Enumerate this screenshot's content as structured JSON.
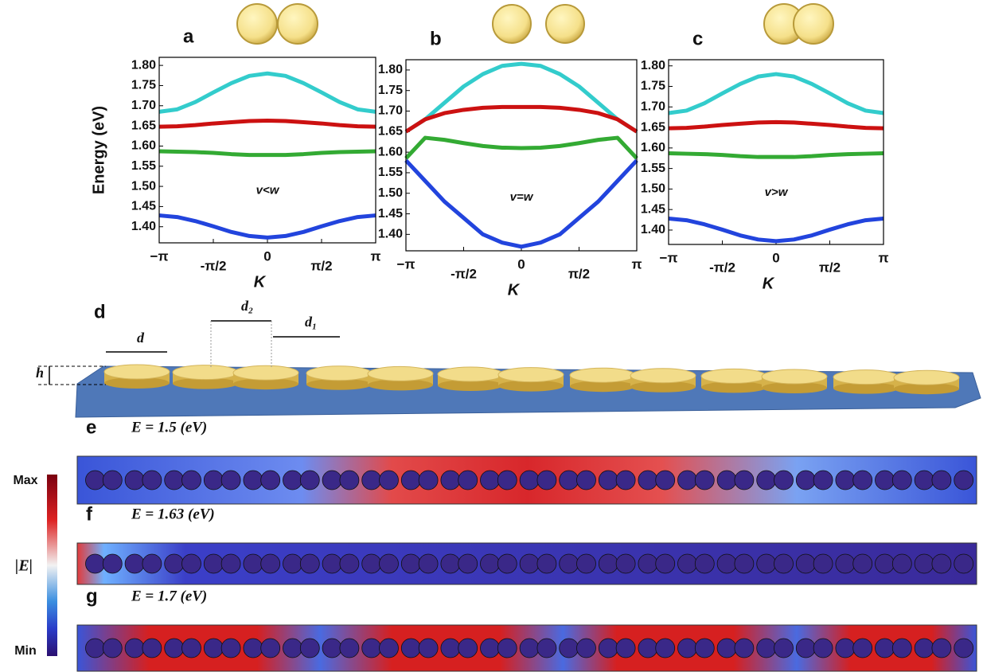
{
  "chart_data": [
    {
      "type": "line",
      "panel": "a",
      "annotation": "v<w",
      "y_label": "Energy (eV)",
      "x_label": "K",
      "x": [
        -3.14159,
        -2.61799,
        -2.0944,
        -1.5708,
        -1.0472,
        -0.5236,
        0,
        0.5236,
        1.0472,
        1.5708,
        2.0944,
        2.61799,
        3.14159
      ],
      "series": [
        {
          "color": "#33cccc",
          "values": [
            1.685,
            1.691,
            1.709,
            1.733,
            1.756,
            1.774,
            1.78,
            1.774,
            1.756,
            1.733,
            1.709,
            1.691,
            1.685
          ]
        },
        {
          "color": "#cc1111",
          "values": [
            1.648,
            1.649,
            1.652,
            1.656,
            1.659,
            1.662,
            1.663,
            1.662,
            1.659,
            1.656,
            1.652,
            1.649,
            1.648
          ]
        },
        {
          "color": "#33aa33",
          "values": [
            1.587,
            1.586,
            1.585,
            1.583,
            1.58,
            1.578,
            1.578,
            1.578,
            1.58,
            1.583,
            1.585,
            1.586,
            1.587
          ]
        },
        {
          "color": "#2244dd",
          "values": [
            1.428,
            1.424,
            1.414,
            1.401,
            1.387,
            1.377,
            1.373,
            1.377,
            1.387,
            1.401,
            1.414,
            1.424,
            1.428
          ]
        }
      ],
      "xlim": [
        -3.14159,
        3.14159
      ],
      "xticks": [
        {
          "value": -3.14159,
          "label": "−π"
        },
        {
          "value": -1.5708,
          "label": "-π/2"
        },
        0,
        {
          "value": 1.5708,
          "label": "π/2"
        },
        {
          "value": 3.14159,
          "label": "π"
        }
      ],
      "ylim": [
        1.36,
        1.82
      ],
      "yticks": [
        {
          "value": 1.4,
          "label": "1.40"
        },
        1.45,
        {
          "value": 1.5,
          "label": "1.50"
        },
        1.55,
        {
          "value": 1.6,
          "label": "1.60"
        },
        1.65,
        {
          "value": 1.7,
          "label": "1.70"
        },
        1.75,
        {
          "value": 1.8,
          "label": "1.80"
        }
      ]
    },
    {
      "type": "line",
      "panel": "b",
      "annotation": "v=w",
      "x_label": "K",
      "x": [
        -3.14159,
        -2.61799,
        -2.0944,
        -1.5708,
        -1.0472,
        -0.5236,
        0,
        0.5236,
        1.0472,
        1.5708,
        2.0944,
        2.61799,
        3.14159
      ],
      "series": [
        {
          "color": "#33cccc",
          "values": [
            1.65,
            1.68,
            1.72,
            1.76,
            1.79,
            1.81,
            1.815,
            1.81,
            1.79,
            1.76,
            1.72,
            1.68,
            1.65
          ]
        },
        {
          "color": "#cc1111",
          "values": [
            1.65,
            1.68,
            1.695,
            1.703,
            1.708,
            1.71,
            1.71,
            1.71,
            1.708,
            1.703,
            1.695,
            1.68,
            1.65
          ]
        },
        {
          "color": "#33aa33",
          "values": [
            1.585,
            1.635,
            1.63,
            1.622,
            1.615,
            1.611,
            1.61,
            1.611,
            1.615,
            1.622,
            1.63,
            1.635,
            1.585
          ]
        },
        {
          "color": "#2244dd",
          "values": [
            1.58,
            1.53,
            1.48,
            1.44,
            1.4,
            1.38,
            1.37,
            1.38,
            1.4,
            1.44,
            1.48,
            1.53,
            1.58
          ]
        }
      ],
      "xlim": [
        -3.14159,
        3.14159
      ],
      "xticks": [
        {
          "value": -3.14159,
          "label": "−π"
        },
        {
          "value": -1.5708,
          "label": "-π/2"
        },
        0,
        {
          "value": 1.5708,
          "label": "π/2"
        },
        {
          "value": 3.14159,
          "label": "π"
        }
      ],
      "ylim": [
        1.36,
        1.825
      ],
      "yticks": [
        {
          "value": 1.4,
          "label": "1.40"
        },
        1.45,
        {
          "value": 1.5,
          "label": "1.50"
        },
        1.55,
        {
          "value": 1.6,
          "label": "1.60"
        },
        1.65,
        {
          "value": 1.7,
          "label": "1.70"
        },
        1.75,
        {
          "value": 1.8,
          "label": "1.80"
        }
      ]
    },
    {
      "type": "line",
      "panel": "c",
      "annotation": "v>w",
      "x_label": "K",
      "x": [
        -3.14159,
        -2.61799,
        -2.0944,
        -1.5708,
        -1.0472,
        -0.5236,
        0,
        0.5236,
        1.0472,
        1.5708,
        2.0944,
        2.61799,
        3.14159
      ],
      "series": [
        {
          "color": "#33cccc",
          "values": [
            1.685,
            1.691,
            1.709,
            1.733,
            1.756,
            1.774,
            1.78,
            1.774,
            1.756,
            1.733,
            1.709,
            1.691,
            1.685
          ]
        },
        {
          "color": "#cc1111",
          "values": [
            1.648,
            1.649,
            1.652,
            1.656,
            1.659,
            1.662,
            1.663,
            1.662,
            1.659,
            1.656,
            1.652,
            1.649,
            1.648
          ]
        },
        {
          "color": "#33aa33",
          "values": [
            1.587,
            1.586,
            1.585,
            1.583,
            1.58,
            1.578,
            1.578,
            1.578,
            1.58,
            1.583,
            1.585,
            1.586,
            1.587
          ]
        },
        {
          "color": "#2244dd",
          "values": [
            1.428,
            1.424,
            1.414,
            1.401,
            1.387,
            1.377,
            1.373,
            1.377,
            1.387,
            1.401,
            1.414,
            1.424,
            1.428
          ]
        }
      ],
      "xlim": [
        -3.14159,
        3.14159
      ],
      "xticks": [
        {
          "value": -3.14159,
          "label": "−π"
        },
        {
          "value": -1.5708,
          "label": "-π/2"
        },
        0,
        {
          "value": 1.5708,
          "label": "π/2"
        },
        {
          "value": 3.14159,
          "label": "π"
        }
      ],
      "ylim": [
        1.365,
        1.815
      ],
      "yticks": [
        {
          "value": 1.4,
          "label": "1.40"
        },
        1.45,
        {
          "value": 1.5,
          "label": "1.50"
        },
        1.55,
        {
          "value": 1.6,
          "label": "1.60"
        },
        1.65,
        {
          "value": 1.7,
          "label": "1.70"
        },
        1.75,
        {
          "value": 1.8,
          "label": "1.80"
        }
      ]
    }
  ],
  "structure": {
    "panel": "d",
    "labels": [
      "d",
      "d₂",
      "d₁",
      "h"
    ]
  },
  "field_maps": [
    {
      "panel": "e",
      "label": "E = 1.5 (eV)"
    },
    {
      "panel": "f",
      "label": "E = 1.63 (eV)"
    },
    {
      "panel": "g",
      "label": "E = 1.7 (eV)"
    }
  ],
  "colorbar": {
    "max": "Max",
    "quantity": "|E|",
    "min": "Min"
  }
}
